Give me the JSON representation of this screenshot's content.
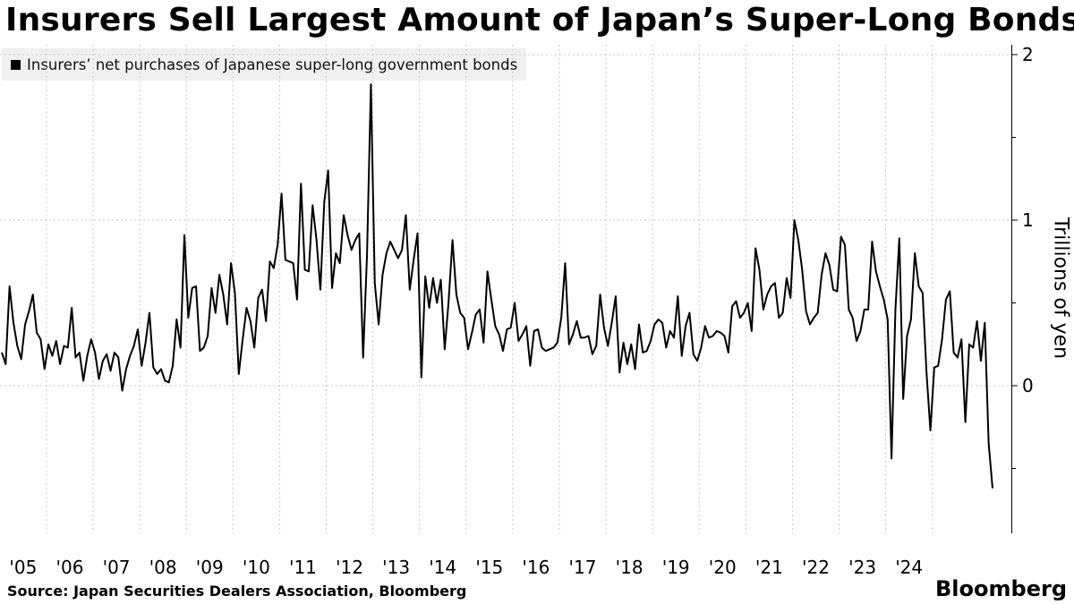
{
  "title": "Insurers Sell Largest Amount of Japan’s Super-Long Bonds",
  "source": "Source: Japan Securities Dealers Association, Bloomberg",
  "brand": "Bloomberg",
  "chart_data": {
    "type": "line",
    "title": "Insurers Sell Largest Amount of Japan’s Super-Long Bonds",
    "ylabel": "Trillions of yen",
    "xlabel": "",
    "x_start": "2005-01",
    "x_end": "2024-10",
    "frequency": "monthly",
    "ylim": [
      -0.7,
      2.05
    ],
    "yticks": [
      0,
      1,
      2
    ],
    "ytick_labels": [
      "0",
      "1",
      "2"
    ],
    "xtick_labels": [
      "'05",
      "'06",
      "'07",
      "'08",
      "'09",
      "'10",
      "'11",
      "'12",
      "'13",
      "'14",
      "'15",
      "'16",
      "'17",
      "'18",
      "'19",
      "'20",
      "'21",
      "'22",
      "'23",
      "'24"
    ],
    "grid": true,
    "legend_position": "top-left",
    "series": [
      {
        "name": "Insurers’ net purchases of Japanese super-long government bonds",
        "color": "#000000",
        "values": [
          0.2,
          0.13,
          0.6,
          0.38,
          0.24,
          0.16,
          0.37,
          0.45,
          0.55,
          0.32,
          0.28,
          0.1,
          0.25,
          0.18,
          0.27,
          0.13,
          0.24,
          0.23,
          0.47,
          0.17,
          0.2,
          0.03,
          0.18,
          0.28,
          0.2,
          0.04,
          0.15,
          0.19,
          0.09,
          0.2,
          0.17,
          -0.03,
          0.1,
          0.18,
          0.24,
          0.34,
          0.12,
          0.26,
          0.44,
          0.11,
          0.07,
          0.1,
          0.03,
          0.02,
          0.12,
          0.4,
          0.23,
          0.91,
          0.41,
          0.59,
          0.6,
          0.21,
          0.23,
          0.3,
          0.59,
          0.44,
          0.67,
          0.55,
          0.37,
          0.74,
          0.56,
          0.07,
          0.28,
          0.47,
          0.39,
          0.23,
          0.53,
          0.58,
          0.39,
          0.75,
          0.71,
          0.85,
          1.16,
          0.76,
          0.75,
          0.74,
          0.52,
          1.22,
          0.7,
          0.69,
          1.09,
          0.88,
          0.58,
          1.11,
          1.3,
          0.59,
          0.8,
          0.74,
          1.03,
          0.91,
          0.82,
          0.88,
          0.92,
          0.17,
          0.79,
          1.82,
          0.62,
          0.37,
          0.67,
          0.8,
          0.87,
          0.82,
          0.77,
          0.82,
          1.03,
          0.58,
          0.76,
          0.92,
          0.05,
          0.66,
          0.47,
          0.65,
          0.5,
          0.64,
          0.22,
          0.51,
          0.88,
          0.55,
          0.44,
          0.41,
          0.22,
          0.32,
          0.43,
          0.46,
          0.26,
          0.69,
          0.52,
          0.36,
          0.31,
          0.21,
          0.34,
          0.35,
          0.5,
          0.27,
          0.31,
          0.36,
          0.12,
          0.33,
          0.34,
          0.23,
          0.21,
          0.22,
          0.23,
          0.26,
          0.41,
          0.74,
          0.25,
          0.31,
          0.39,
          0.29,
          0.29,
          0.3,
          0.19,
          0.24,
          0.55,
          0.35,
          0.24,
          0.38,
          0.54,
          0.08,
          0.26,
          0.13,
          0.25,
          0.1,
          0.37,
          0.2,
          0.21,
          0.27,
          0.37,
          0.4,
          0.38,
          0.23,
          0.33,
          0.29,
          0.54,
          0.18,
          0.36,
          0.44,
          0.19,
          0.15,
          0.23,
          0.36,
          0.29,
          0.3,
          0.33,
          0.32,
          0.3,
          0.2,
          0.48,
          0.51,
          0.41,
          0.44,
          0.5,
          0.33,
          0.83,
          0.7,
          0.46,
          0.55,
          0.6,
          0.62,
          0.41,
          0.44,
          0.65,
          0.53,
          1.0,
          0.88,
          0.7,
          0.45,
          0.37,
          0.41,
          0.44,
          0.67,
          0.8,
          0.73,
          0.58,
          0.57,
          0.9,
          0.85,
          0.46,
          0.41,
          0.27,
          0.33,
          0.46,
          0.46,
          0.87,
          0.69,
          0.6,
          0.52,
          0.4,
          -0.44,
          0.46,
          0.89,
          -0.08,
          0.3,
          0.4,
          0.8,
          0.6,
          0.56,
          0.08,
          -0.27,
          0.11,
          0.12,
          0.28,
          0.52,
          0.57,
          0.2,
          0.17,
          0.28,
          -0.22,
          0.25,
          0.23,
          0.39,
          0.15,
          0.38,
          -0.35,
          -0.62
        ]
      }
    ]
  }
}
